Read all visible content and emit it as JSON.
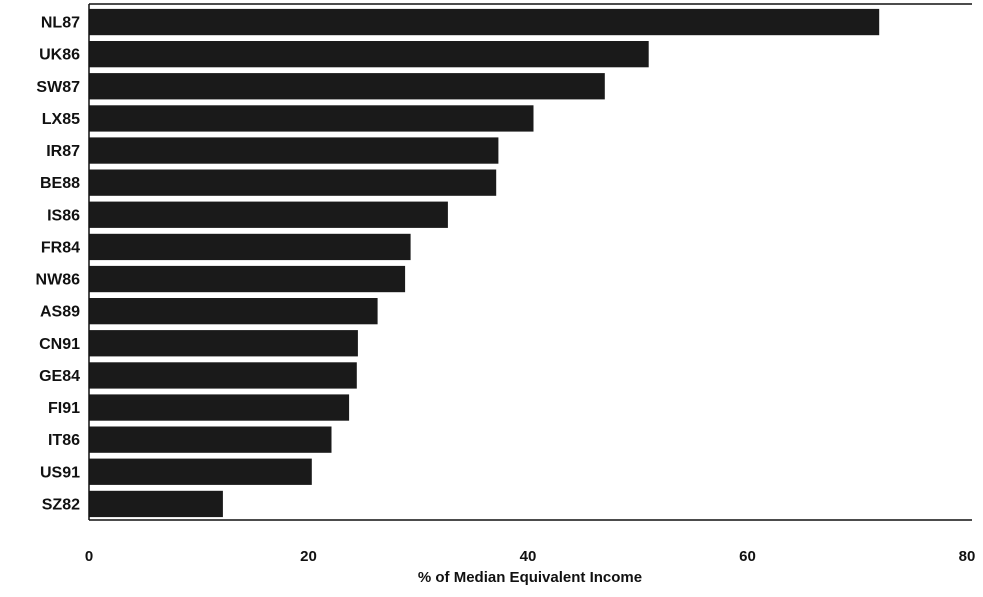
{
  "chart_data": {
    "type": "bar",
    "orientation": "horizontal",
    "categories": [
      "NL87",
      "UK86",
      "SW87",
      "LX85",
      "IR87",
      "BE88",
      "IS86",
      "FR84",
      "NW86",
      "AS89",
      "CN91",
      "GE84",
      "FI91",
      "IT86",
      "US91",
      "SZ82"
    ],
    "values": [
      72,
      51,
      47,
      40.5,
      37.3,
      37.1,
      32.7,
      29.3,
      28.8,
      26.3,
      24.5,
      24.4,
      23.7,
      22.1,
      20.3,
      12.2
    ],
    "xlabel": "% of Median Equivalent Income",
    "ylabel": "",
    "title": "",
    "xlim": [
      0,
      80
    ],
    "xticks": [
      "0",
      "20",
      "40",
      "60",
      "80"
    ],
    "grid": false,
    "bar_color": "#1a1a1a"
  }
}
